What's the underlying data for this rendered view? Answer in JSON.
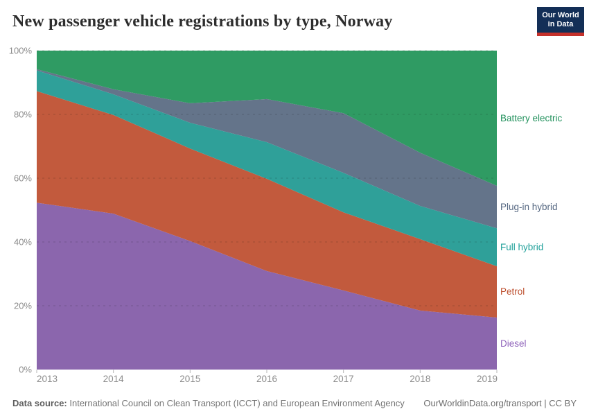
{
  "header": {
    "title": "New passenger vehicle registrations by type, Norway"
  },
  "logo": {
    "line1": "Our World",
    "line2": "in Data",
    "bg_color": "#132f57",
    "accent_color": "#c5312b"
  },
  "axes": {
    "y_tick_labels": [
      "0%",
      "20%",
      "40%",
      "60%",
      "80%",
      "100%"
    ],
    "x_tick_labels": [
      "2013",
      "2014",
      "2015",
      "2016",
      "2017",
      "2018",
      "2019"
    ],
    "tick_color": "#8c8c8c"
  },
  "chart_data": {
    "type": "area",
    "stacked": true,
    "title": "New passenger vehicle registrations by type, Norway",
    "x": [
      2013,
      2014,
      2015,
      2016,
      2017,
      2018,
      2019
    ],
    "xlabel": "",
    "ylabel": "",
    "ylim": [
      0,
      100
    ],
    "y_ticks": [
      0,
      20,
      40,
      60,
      80,
      100
    ],
    "y_tick_suffix": "%",
    "grid": "dashed-horizontal",
    "legend_position": "right-edge-labels",
    "series": [
      {
        "name": "Diesel",
        "color": "#8b66ad",
        "label_color": "#9065bb",
        "values": [
          52.3,
          48.9,
          40.3,
          30.9,
          24.8,
          18.5,
          16.3
        ]
      },
      {
        "name": "Petrol",
        "color": "#c25a3d",
        "label_color": "#bd4f2e",
        "values": [
          35.0,
          30.9,
          29.0,
          28.9,
          24.5,
          22.4,
          16.1
        ]
      },
      {
        "name": "Full hybrid",
        "color": "#2fa099",
        "label_color": "#1fa09a",
        "values": [
          6.5,
          6.5,
          8.1,
          11.5,
          12.4,
          10.4,
          11.9
        ]
      },
      {
        "name": "Plug-in hybrid",
        "color": "#64748a",
        "label_color": "#566882",
        "values": [
          0.4,
          1.6,
          6.1,
          13.5,
          18.7,
          16.7,
          13.3
        ]
      },
      {
        "name": "Battery electric",
        "color": "#2f9b63",
        "label_color": "#21915c",
        "values": [
          5.8,
          12.1,
          16.5,
          15.2,
          19.6,
          32.0,
          42.4
        ]
      }
    ]
  },
  "footer": {
    "source_label": "Data source:",
    "source_text": " International Council on Clean Transport (ICCT) and European Environment Agency",
    "credit": "OurWorldinData.org/transport | CC BY"
  }
}
